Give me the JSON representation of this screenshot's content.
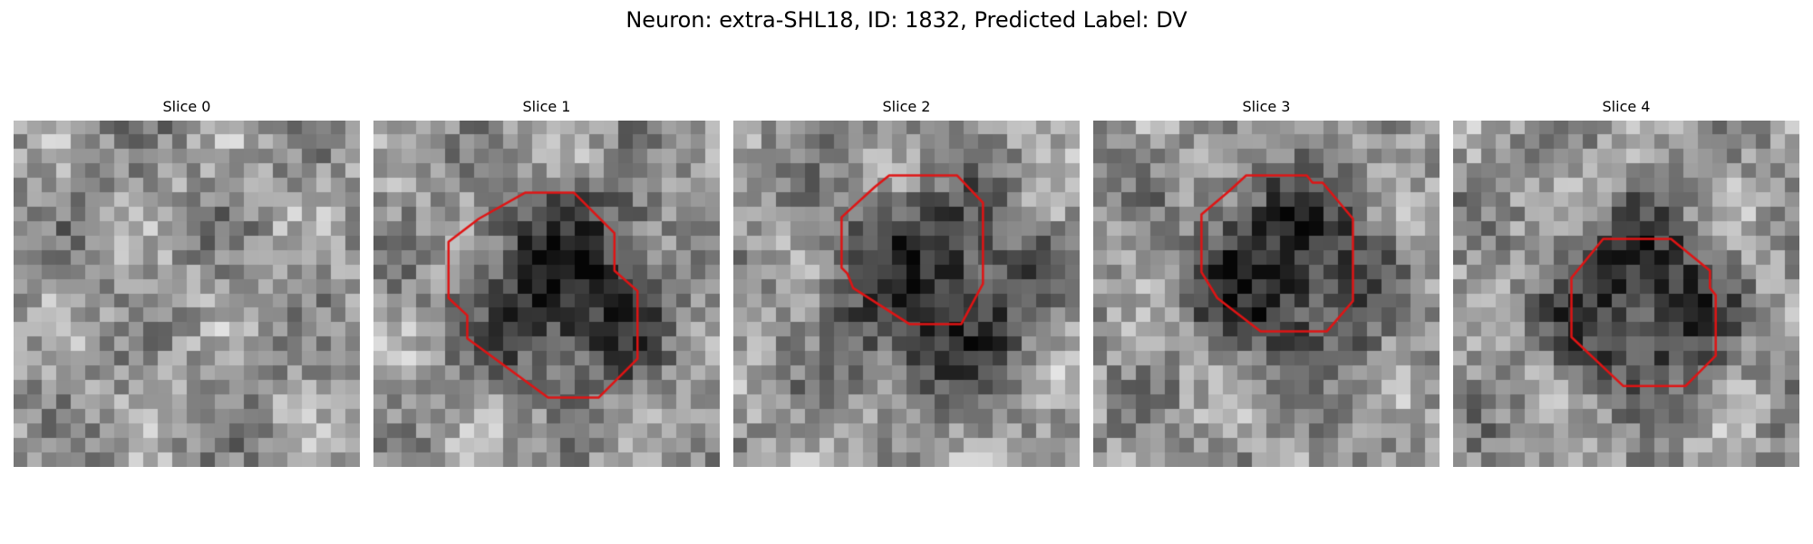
{
  "figure": {
    "title": "Neuron: extra-SHL18, ID: 1832, Predicted Label: DV"
  },
  "panels": [
    {
      "title": "Slice 0",
      "dark_blob": null,
      "outline": null
    },
    {
      "title": "Slice 1",
      "dark_blob": {
        "cx": 13.5,
        "cy": 11.5,
        "r": 6.5
      },
      "outline": [
        [
          10.5,
          5
        ],
        [
          13.9,
          5
        ],
        [
          16.7,
          7.8
        ],
        [
          16.7,
          10.4
        ],
        [
          18.3,
          11.8
        ],
        [
          18.3,
          16.5
        ],
        [
          15.6,
          19.2
        ],
        [
          12.1,
          19.2
        ],
        [
          6.5,
          15.1
        ],
        [
          6.5,
          13.5
        ],
        [
          5.2,
          12.3
        ],
        [
          5.2,
          8.4
        ],
        [
          7.3,
          6.8
        ]
      ]
    },
    {
      "title": "Slice 2",
      "dark_blob": {
        "cx": 14.2,
        "cy": 12,
        "r": 6.5
      },
      "outline": [
        [
          10.8,
          3.8
        ],
        [
          15.5,
          3.8
        ],
        [
          17.3,
          5.7
        ],
        [
          17.3,
          11.3
        ],
        [
          15.8,
          14.1
        ],
        [
          12.2,
          14.1
        ],
        [
          8.3,
          11.6
        ],
        [
          7.9,
          10.6
        ],
        [
          7.5,
          10.2
        ],
        [
          7.5,
          6.7
        ],
        [
          9.8,
          4.6
        ]
      ]
    },
    {
      "title": "Slice 3",
      "dark_blob": {
        "cx": 13.5,
        "cy": 10.5,
        "r": 6.3
      },
      "outline": [
        [
          10.6,
          3.8
        ],
        [
          14.8,
          3.8
        ],
        [
          15.2,
          4.3
        ],
        [
          15.9,
          4.3
        ],
        [
          18,
          6.8
        ],
        [
          18,
          12.5
        ],
        [
          16.2,
          14.6
        ],
        [
          11.6,
          14.6
        ],
        [
          8.6,
          12.3
        ],
        [
          7.5,
          10.5
        ],
        [
          7.5,
          6.5
        ],
        [
          9.4,
          4.9
        ]
      ]
    },
    {
      "title": "Slice 4",
      "dark_blob": {
        "cx": 13,
        "cy": 12.5,
        "r": 5.8
      },
      "outline": [
        [
          10.4,
          8.2
        ],
        [
          15.1,
          8.2
        ],
        [
          17.8,
          10.4
        ],
        [
          17.8,
          11.6
        ],
        [
          18.2,
          12.1
        ],
        [
          18.2,
          16.3
        ],
        [
          16.1,
          18.4
        ],
        [
          11.8,
          18.4
        ],
        [
          8.2,
          15
        ],
        [
          8.2,
          10.9
        ]
      ]
    }
  ],
  "colors": {
    "background": "#ffffff",
    "contour": "#e01414"
  }
}
